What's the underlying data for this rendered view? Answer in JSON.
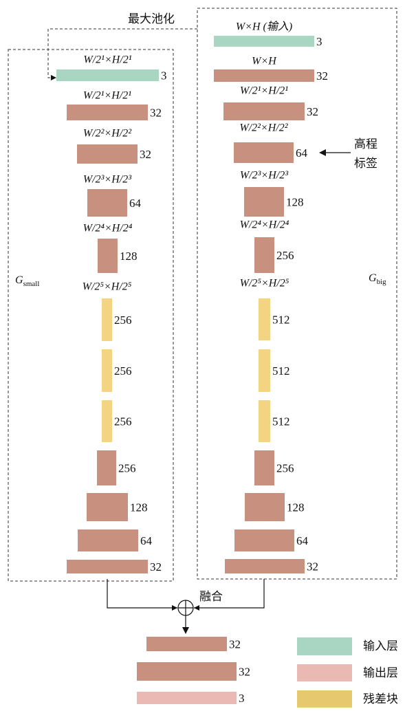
{
  "pool_label": "最大池化",
  "left": {
    "name": "G",
    "subscript": "small",
    "layers": [
      {
        "label": "W/2¹×H/2¹",
        "channels": 3
      },
      {
        "label": "W/2¹×H/2¹",
        "channels": 32
      },
      {
        "label": "W/2²×H/2²",
        "channels": 32
      },
      {
        "label": "W/2³×H/2³",
        "channels": 64
      },
      {
        "label": "W/2⁴×H/2⁴",
        "channels": 128
      },
      {
        "label": "W/2⁵×H/2⁵",
        "channels": 256
      },
      {
        "channels": 256
      },
      {
        "channels": 256
      },
      {
        "channels": 256
      },
      {
        "channels": 128
      },
      {
        "channels": 64
      },
      {
        "channels": 32
      }
    ]
  },
  "right": {
    "name": "G",
    "subscript": "big",
    "layers": [
      {
        "label": "W×H (输入)",
        "channels": 3
      },
      {
        "label": "W×H",
        "channels": 32
      },
      {
        "label": "W/2¹×H/2¹",
        "channels": 32
      },
      {
        "label": "W/2²×H/2²",
        "channels": 64
      },
      {
        "label": "W/2³×H/2³",
        "channels": 128
      },
      {
        "label": "W/2⁴×H/2⁴",
        "channels": 256
      },
      {
        "label": "W/2⁵×H/2⁵",
        "channels": 512
      },
      {
        "channels": 512
      },
      {
        "channels": 512
      },
      {
        "channels": 256
      },
      {
        "channels": 128
      },
      {
        "channels": 64
      },
      {
        "channels": 32
      }
    ]
  },
  "elevation_label": [
    "高程",
    "标签"
  ],
  "merge_label": "融合",
  "output": {
    "layers": [
      {
        "channels": 32
      },
      {
        "channels": 32
      },
      {
        "channels": 3
      }
    ]
  },
  "legend": [
    "输入层",
    "输出层",
    "残差块"
  ]
}
